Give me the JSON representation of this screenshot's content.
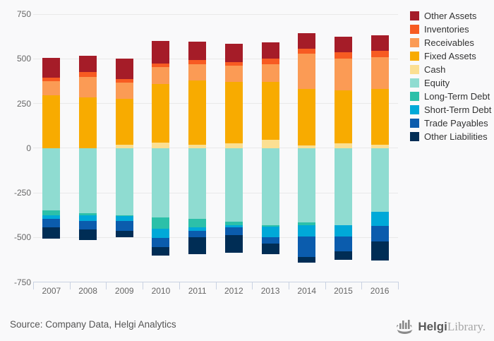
{
  "chart_data": {
    "type": "bar",
    "stacked": true,
    "title": "",
    "xlabel": "",
    "ylabel": "",
    "ylim": [
      -750,
      750
    ],
    "yticks": [
      750,
      500,
      250,
      0,
      -250,
      -500,
      -750
    ],
    "grid": "horizontal",
    "legend_position": "top-right",
    "categories": [
      "2007",
      "2008",
      "2009",
      "2010",
      "2011",
      "2012",
      "2013",
      "2014",
      "2015",
      "2016"
    ],
    "series": [
      {
        "name": "Other Assets",
        "color": "#a51c28",
        "values": [
          110,
          90,
          115,
          125,
          100,
          105,
          93,
          88,
          90,
          85
        ]
      },
      {
        "name": "Inventories",
        "color": "#f75b22",
        "values": [
          20,
          25,
          20,
          20,
          25,
          20,
          30,
          25,
          35,
          35
        ]
      },
      {
        "name": "Receivables",
        "color": "#fb9b55",
        "values": [
          80,
          115,
          90,
          95,
          90,
          90,
          100,
          200,
          175,
          180
        ]
      },
      {
        "name": "Fixed Assets",
        "color": "#f8ab00",
        "values": [
          295,
          285,
          255,
          330,
          360,
          345,
          325,
          315,
          300,
          310
        ]
      },
      {
        "name": "Cash",
        "color": "#fbdf92",
        "values": [
          0,
          0,
          20,
          30,
          20,
          25,
          45,
          15,
          25,
          20
        ]
      },
      {
        "name": "Equity",
        "color": "#8fdcd1",
        "values": [
          -350,
          -365,
          -375,
          -390,
          -395,
          -413,
          -430,
          -415,
          -433,
          -358
        ]
      },
      {
        "name": "Long-Term Debt",
        "color": "#2cc0a9",
        "values": [
          -25,
          -10,
          -5,
          -60,
          -48,
          -20,
          -10,
          -15,
          0,
          0
        ]
      },
      {
        "name": "Short-Term Debt",
        "color": "#00a9d8",
        "values": [
          -20,
          -35,
          -30,
          -52,
          -20,
          -11,
          -60,
          -65,
          -62,
          -78
        ]
      },
      {
        "name": "Trade Payables",
        "color": "#0b5cad",
        "values": [
          -47,
          -45,
          -52,
          -52,
          -37,
          -44,
          -33,
          -115,
          -84,
          -87
        ]
      },
      {
        "name": "Other Liabilities",
        "color": "#002d55",
        "values": [
          -63,
          -60,
          -38,
          -46,
          -95,
          -97,
          -60,
          -33,
          -46,
          -107
        ]
      }
    ]
  },
  "footer": {
    "source": "Source: Company Data, Helgi Analytics",
    "logo_bold": "Helgi",
    "logo_light": "Library."
  }
}
